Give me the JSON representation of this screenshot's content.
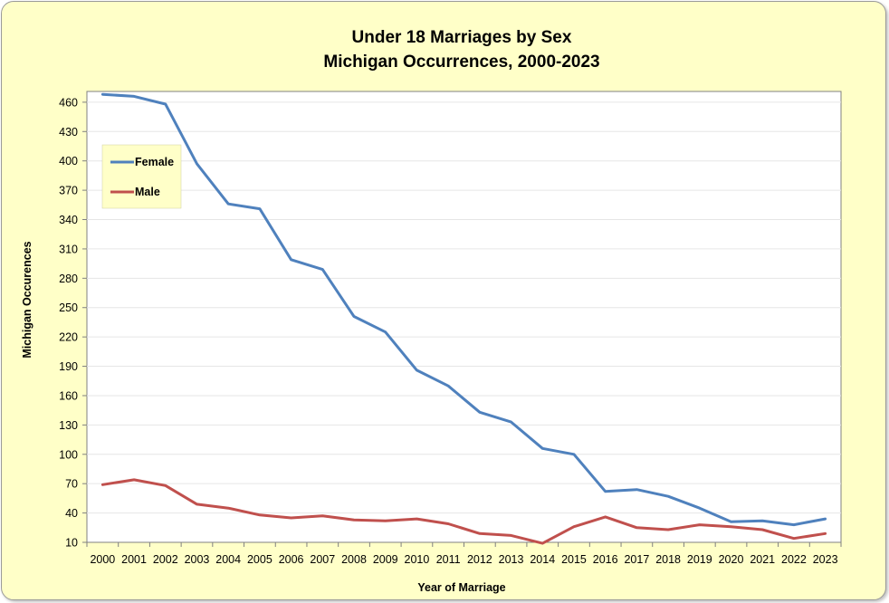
{
  "chart_data": {
    "type": "line",
    "title": "Under 18 Marriages by Sex",
    "subtitle": "Michigan Occurrences, 2000-2023",
    "xlabel": "Year of Marriage",
    "ylabel": "Michigan Occurences",
    "x": [
      "2000",
      "2001",
      "2002",
      "2003",
      "2004",
      "2005",
      "2006",
      "2007",
      "2008",
      "2009",
      "2010",
      "2011",
      "2012",
      "2013",
      "2014",
      "2015",
      "2016",
      "2017",
      "2018",
      "2019",
      "2020",
      "2021",
      "2022",
      "2023"
    ],
    "yticks": [
      10,
      40,
      70,
      100,
      130,
      160,
      190,
      220,
      250,
      280,
      310,
      340,
      370,
      400,
      430,
      460
    ],
    "ylim": [
      10,
      471
    ],
    "grid": true,
    "legend_position": "left",
    "series": [
      {
        "name": "Female",
        "color": "#4f81bd",
        "values": [
          468,
          466,
          458,
          397,
          356,
          351,
          299,
          289,
          241,
          225,
          186,
          170,
          143,
          133,
          106,
          100,
          62,
          64,
          57,
          45,
          31,
          32,
          28,
          34
        ]
      },
      {
        "name": "Male",
        "color": "#c0504d",
        "values": [
          69,
          74,
          68,
          49,
          45,
          38,
          35,
          37,
          33,
          32,
          34,
          29,
          19,
          17,
          9,
          26,
          36,
          25,
          23,
          28,
          26,
          23,
          14,
          19
        ]
      }
    ]
  }
}
